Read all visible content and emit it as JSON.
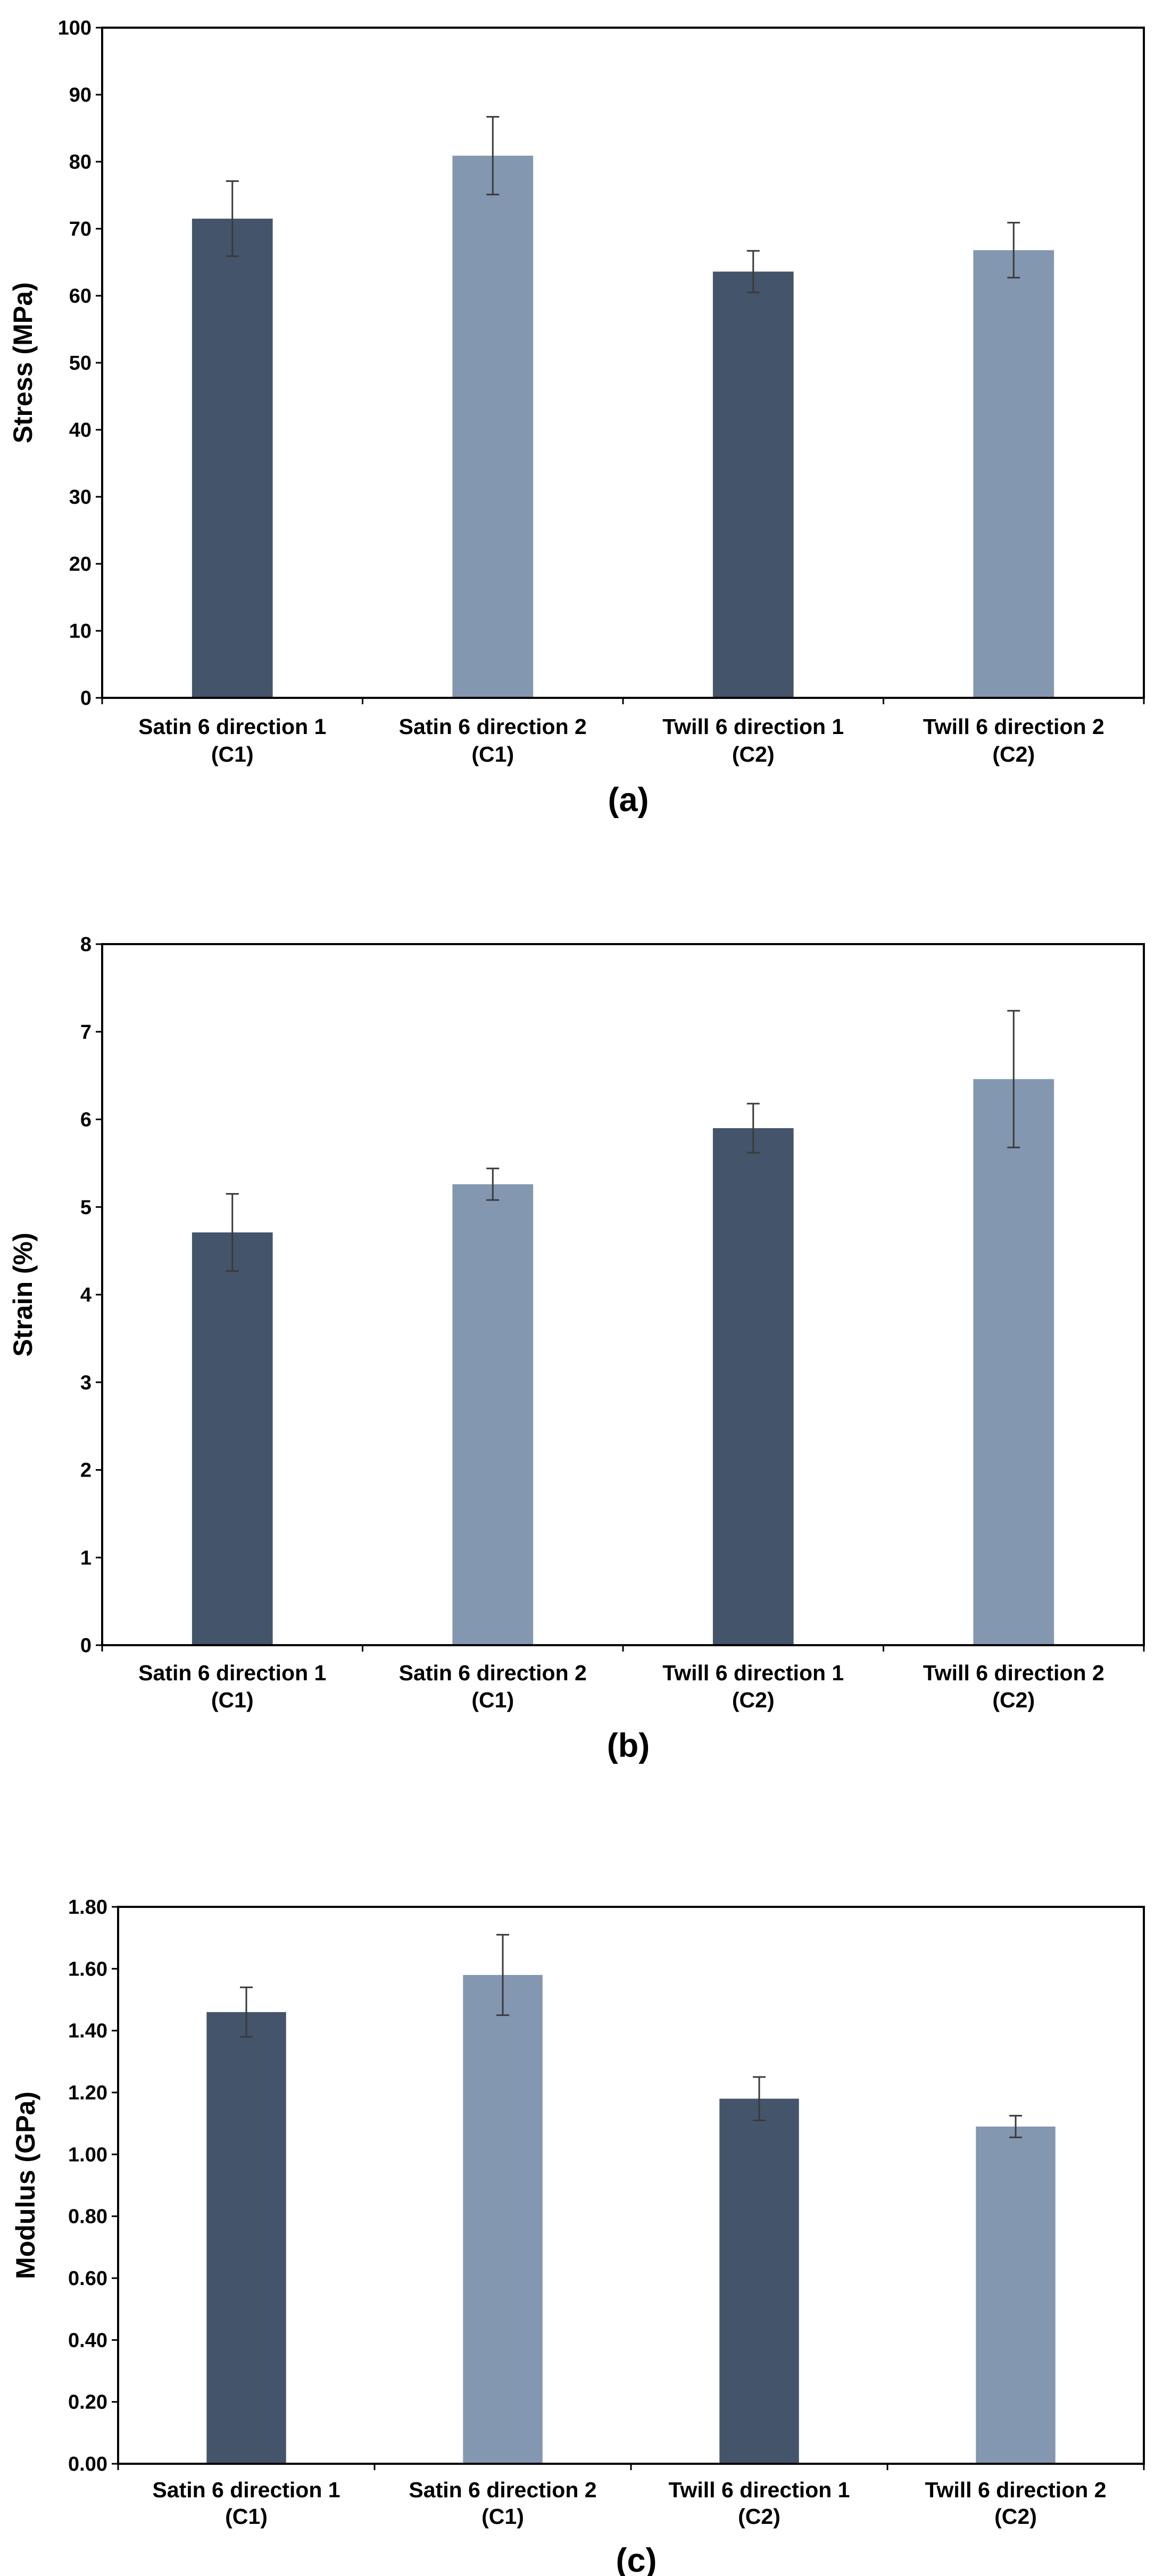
{
  "chart_data": [
    {
      "type": "bar",
      "panel_label": "(a)",
      "ylabel": "Stress (MPa)",
      "xlabel": "",
      "ylim": [
        0,
        100
      ],
      "y_ticks": [
        0,
        10,
        20,
        30,
        40,
        50,
        60,
        70,
        80,
        90,
        100
      ],
      "y_tick_labels": [
        "0",
        "10",
        "20",
        "30",
        "40",
        "50",
        "60",
        "70",
        "80",
        "90",
        "100"
      ],
      "categories": [
        [
          "Satin 6 direction 1",
          "(C1)"
        ],
        [
          "Satin 6 direction 2",
          "(C1)"
        ],
        [
          "Twill 6 direction 1",
          "(C2)"
        ],
        [
          "Twill 6 direction 2",
          "(C2)"
        ]
      ],
      "values": [
        71.5,
        80.9,
        63.6,
        66.8
      ],
      "errors": [
        5.6,
        5.8,
        3.1,
        4.1
      ],
      "bar_colors": [
        "#44546a",
        "#8497b0",
        "#44546a",
        "#8497b0"
      ],
      "legend": "none",
      "grid": false
    },
    {
      "type": "bar",
      "panel_label": "(b)",
      "ylabel": "Strain (%)",
      "xlabel": "",
      "ylim": [
        0,
        8
      ],
      "y_ticks": [
        0,
        1,
        2,
        3,
        4,
        5,
        6,
        7,
        8
      ],
      "y_tick_labels": [
        "0",
        "1",
        "2",
        "3",
        "4",
        "5",
        "6",
        "7",
        "8"
      ],
      "categories": [
        [
          "Satin 6 direction 1",
          "(C1)"
        ],
        [
          "Satin 6 direction 2",
          "(C1)"
        ],
        [
          "Twill 6 direction 1",
          "(C2)"
        ],
        [
          "Twill 6 direction 2",
          "(C2)"
        ]
      ],
      "values": [
        4.71,
        5.26,
        5.9,
        6.46
      ],
      "errors": [
        0.44,
        0.18,
        0.28,
        0.78
      ],
      "bar_colors": [
        "#44546a",
        "#8497b0",
        "#44546a",
        "#8497b0"
      ],
      "legend": "none",
      "grid": false
    },
    {
      "type": "bar",
      "panel_label": "(c)",
      "ylabel": "Modulus (GPa)",
      "xlabel": "",
      "ylim": [
        0,
        1.8
      ],
      "y_ticks": [
        0,
        0.2,
        0.4,
        0.6,
        0.8,
        1.0,
        1.2,
        1.4,
        1.6,
        1.8
      ],
      "y_tick_labels": [
        "0.00",
        "0.20",
        "0.40",
        "0.60",
        "0.80",
        "1.00",
        "1.20",
        "1.40",
        "1.60",
        "1.80"
      ],
      "categories": [
        [
          "Satin 6 direction 1",
          "(C1)"
        ],
        [
          "Satin 6 direction 2",
          "(C1)"
        ],
        [
          "Twill 6 direction 1",
          "(C2)"
        ],
        [
          "Twill 6 direction 2",
          "(C2)"
        ]
      ],
      "values": [
        1.46,
        1.58,
        1.18,
        1.09
      ],
      "errors": [
        0.08,
        0.13,
        0.07,
        0.035
      ],
      "bar_colors": [
        "#44546a",
        "#8497b0",
        "#44546a",
        "#8497b0"
      ],
      "legend": "none",
      "grid": false
    }
  ]
}
